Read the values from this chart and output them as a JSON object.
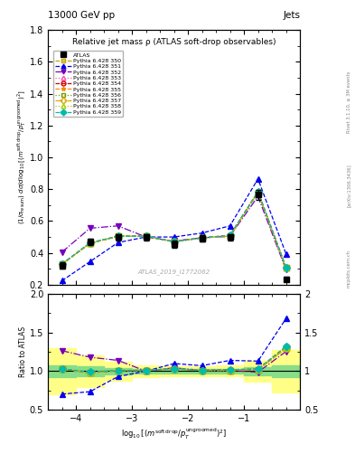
{
  "title_top": "13000 GeV pp",
  "title_right": "Jets",
  "plot_title": "Relative jet mass ρ (ATLAS soft-drop observables)",
  "watermark": "ATLAS_2019_I1772062",
  "xlim": [
    -4.5,
    0.0
  ],
  "ylim_main": [
    0.2,
    1.8
  ],
  "ylim_ratio": [
    0.5,
    2.0
  ],
  "x_data": [
    -4.25,
    -3.75,
    -3.25,
    -2.75,
    -2.25,
    -1.75,
    -1.25,
    -0.75,
    -0.25
  ],
  "x_edges": [
    -4.5,
    -4.0,
    -3.5,
    -3.0,
    -2.5,
    -2.0,
    -1.5,
    -1.0,
    -0.5,
    0.0
  ],
  "atlas_y": [
    0.32,
    0.47,
    0.5,
    0.5,
    0.455,
    0.49,
    0.5,
    0.765,
    0.235
  ],
  "atlas_yerr": [
    0.02,
    0.02,
    0.02,
    0.02,
    0.02,
    0.02,
    0.02,
    0.03,
    0.015
  ],
  "green_band_inner": [
    0.08,
    0.06,
    0.04,
    0.03,
    0.03,
    0.03,
    0.03,
    0.05,
    0.08
  ],
  "yellow_band_outer": [
    0.3,
    0.2,
    0.12,
    0.08,
    0.06,
    0.06,
    0.07,
    0.14,
    0.28
  ],
  "series": [
    {
      "label": "ATLAS",
      "color": "#000000",
      "marker": "s",
      "markersize": 5,
      "linestyle": "none",
      "filled": true,
      "y": [
        0.32,
        0.47,
        0.5,
        0.5,
        0.455,
        0.49,
        0.5,
        0.765,
        0.235
      ]
    },
    {
      "label": "Pythia 6.428 350",
      "color": "#c8a000",
      "marker": "s",
      "markersize": 4,
      "linestyle": "--",
      "filled": false,
      "y": [
        0.33,
        0.46,
        0.505,
        0.505,
        0.47,
        0.495,
        0.505,
        0.78,
        0.305
      ]
    },
    {
      "label": "Pythia 6.428 351",
      "color": "#0000ee",
      "marker": "^",
      "markersize": 4,
      "linestyle": "--",
      "filled": true,
      "y": [
        0.225,
        0.345,
        0.465,
        0.5,
        0.5,
        0.525,
        0.57,
        0.865,
        0.395
      ]
    },
    {
      "label": "Pythia 6.428 352",
      "color": "#7700bb",
      "marker": "v",
      "markersize": 4,
      "linestyle": "-.",
      "filled": true,
      "y": [
        0.405,
        0.555,
        0.57,
        0.5,
        0.475,
        0.495,
        0.505,
        0.755,
        0.295
      ]
    },
    {
      "label": "Pythia 6.428 353",
      "color": "#ff55aa",
      "marker": "^",
      "markersize": 4,
      "linestyle": ":",
      "filled": false,
      "y": [
        0.33,
        0.46,
        0.505,
        0.505,
        0.47,
        0.495,
        0.505,
        0.78,
        0.305
      ]
    },
    {
      "label": "Pythia 6.428 354",
      "color": "#cc0000",
      "marker": "o",
      "markersize": 4,
      "linestyle": "--",
      "filled": false,
      "y": [
        0.33,
        0.46,
        0.505,
        0.505,
        0.47,
        0.495,
        0.51,
        0.785,
        0.31
      ]
    },
    {
      "label": "Pythia 6.428 355",
      "color": "#ff8800",
      "marker": "*",
      "markersize": 5,
      "linestyle": "--",
      "filled": true,
      "y": [
        0.33,
        0.46,
        0.505,
        0.505,
        0.47,
        0.495,
        0.51,
        0.785,
        0.31
      ]
    },
    {
      "label": "Pythia 6.428 356",
      "color": "#779900",
      "marker": "s",
      "markersize": 4,
      "linestyle": ":",
      "filled": false,
      "y": [
        0.33,
        0.46,
        0.505,
        0.505,
        0.47,
        0.495,
        0.505,
        0.78,
        0.305
      ]
    },
    {
      "label": "Pythia 6.428 357",
      "color": "#ddaa00",
      "marker": "D",
      "markersize": 4,
      "linestyle": "-.",
      "filled": false,
      "y": [
        0.33,
        0.46,
        0.505,
        0.505,
        0.47,
        0.495,
        0.505,
        0.78,
        0.305
      ]
    },
    {
      "label": "Pythia 6.428 358",
      "color": "#aacc00",
      "marker": "^",
      "markersize": 4,
      "linestyle": ":",
      "filled": false,
      "y": [
        0.33,
        0.46,
        0.505,
        0.505,
        0.47,
        0.495,
        0.505,
        0.78,
        0.305
      ]
    },
    {
      "label": "Pythia 6.428 359",
      "color": "#00bbaa",
      "marker": "D",
      "markersize": 4,
      "linestyle": "--",
      "filled": true,
      "y": [
        0.33,
        0.465,
        0.505,
        0.505,
        0.47,
        0.495,
        0.51,
        0.785,
        0.31
      ]
    }
  ],
  "right_label1": "Rivet 3.1.10, ≥ 3M events",
  "right_label2": "[arXiv:1306.3436]",
  "right_label3": "mcplots.cern.ch"
}
